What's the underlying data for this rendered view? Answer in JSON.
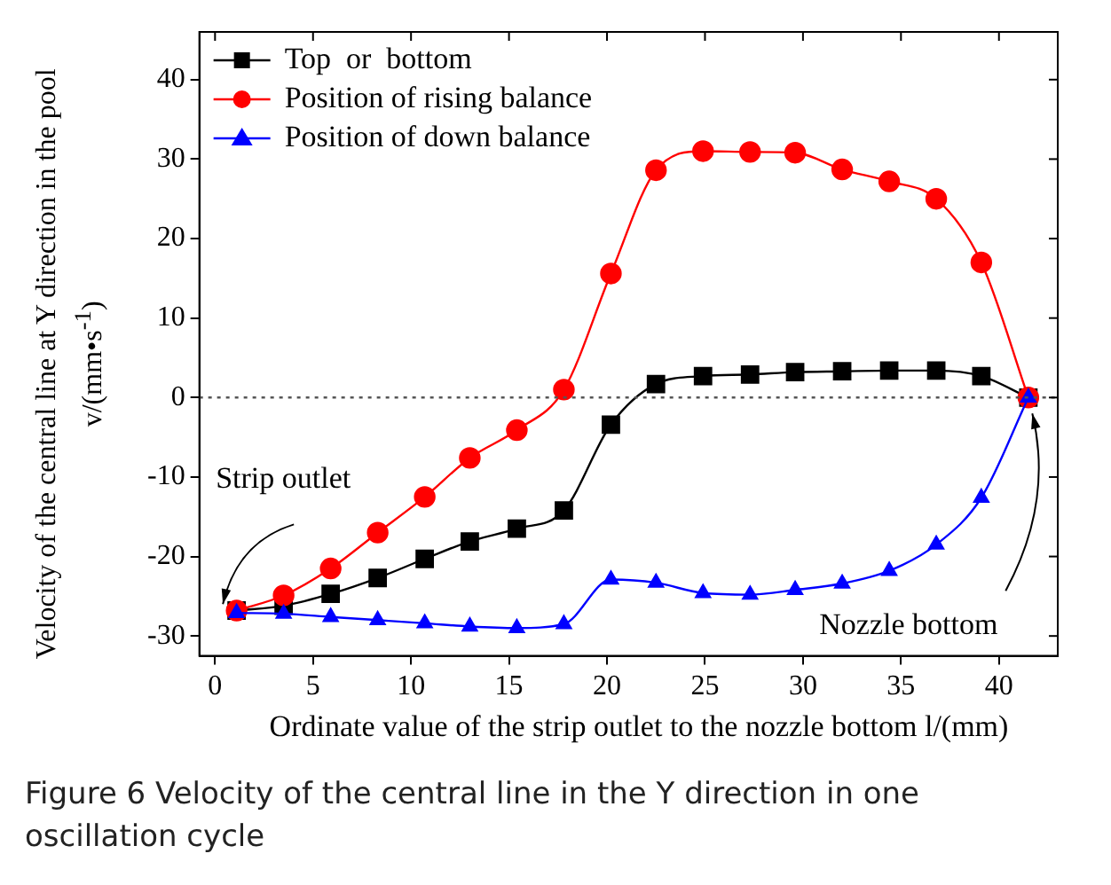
{
  "chart_data": {
    "type": "line",
    "xlabel": "Ordinate value of the strip outlet to the nozzle bottom l/(mm)",
    "ylabel": "Velocity of the central line at Y direction in the pool v/(mm•s$^{-1}$)",
    "x": [
      1.1,
      3.5,
      5.9,
      8.3,
      10.7,
      13.0,
      15.4,
      17.8,
      20.2,
      22.5,
      24.9,
      27.3,
      29.6,
      32.0,
      34.4,
      36.8,
      39.1,
      41.5
    ],
    "series": [
      {
        "name": "Top  or  bottom",
        "color": "#000000",
        "marker": "square",
        "values": [
          -26.8,
          -26.2,
          -24.7,
          -22.7,
          -20.3,
          -18.1,
          -16.5,
          -14.2,
          -3.4,
          1.7,
          2.7,
          2.9,
          3.2,
          3.3,
          3.4,
          3.4,
          2.7,
          0
        ]
      },
      {
        "name": "Position of rising balance",
        "color": "#ff0000",
        "marker": "circle",
        "values": [
          -26.8,
          -24.9,
          -21.5,
          -17,
          -12.5,
          -7.6,
          -4.1,
          1,
          15.6,
          28.6,
          31,
          30.9,
          30.8,
          28.7,
          27.2,
          25,
          17,
          0
        ]
      },
      {
        "name": "Position of down balance",
        "color": "#0000ff",
        "marker": "triangle",
        "values": [
          -27.1,
          -27.2,
          -27.6,
          -28.0,
          -28.4,
          -28.8,
          -29.0,
          -28.5,
          -22.9,
          -23.3,
          -24.6,
          -24.8,
          -24.2,
          -23.4,
          -21.8,
          -18.5,
          -12.6,
          0
        ]
      }
    ],
    "xlim": [
      -0.8,
      43
    ],
    "xticks": [
      0,
      5,
      10,
      15,
      20,
      25,
      30,
      35,
      40
    ],
    "ylim": [
      -32.5,
      46
    ],
    "yticks": [
      -30,
      -20,
      -10,
      0,
      10,
      20,
      30,
      40
    ],
    "ref_lines": [
      {
        "axis": "y",
        "value": 0,
        "line_style": "dotted",
        "color": "#555555"
      }
    ],
    "annotations": [
      {
        "text": "Strip outlet",
        "x": 0.4,
        "y": -26
      },
      {
        "text": "Nozzle bottom",
        "x": 41.7,
        "y": -2
      },
      "Figure 6  Velocity of the central line in the Y direction in one oscillation cycle"
    ],
    "legend": "top left",
    "grid": false
  }
}
